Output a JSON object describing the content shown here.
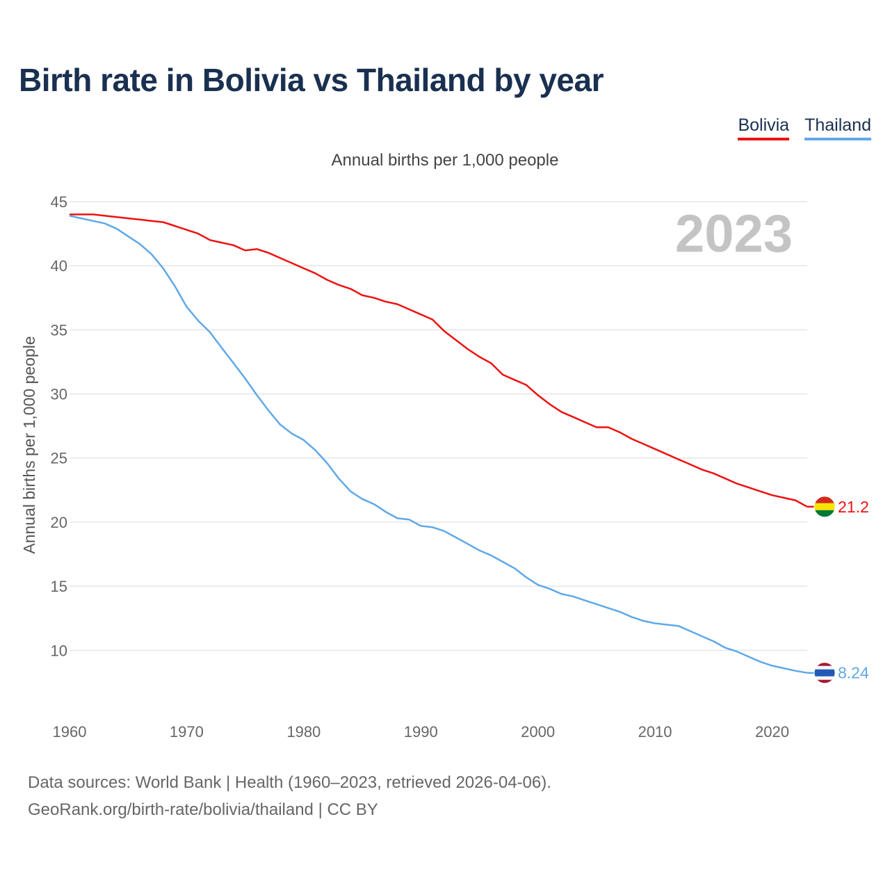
{
  "header": {
    "title": "Birth rate in Bolivia vs Thailand by year"
  },
  "legend": {
    "bolivia": "Bolivia",
    "thailand": "Thailand"
  },
  "footer": {
    "line1": "Data sources: World Bank | Health (1960–2023, retrieved 2026-04-06).",
    "line2": "GeoRank.org/birth-rate/bolivia/thailand | CC BY"
  },
  "colors": {
    "bolivia": "#ee1111",
    "thailand": "#5fa8e8",
    "grid": "#e6e6e6"
  },
  "chart_data": {
    "type": "line",
    "title": "Birth rate in Bolivia vs Thailand by year",
    "subtitle": "Annual births per 1,000 people",
    "ylabel": "Annual births per 1,000 people",
    "xlabel": "",
    "xlim": [
      1960,
      2023
    ],
    "ylim": [
      6,
      45
    ],
    "yticks": [
      10,
      15,
      20,
      25,
      30,
      35,
      40,
      45
    ],
    "xticks": [
      1960,
      1970,
      1980,
      1990,
      2000,
      2010,
      2020
    ],
    "grid": true,
    "year_watermark": "2023",
    "x": [
      1960,
      1961,
      1962,
      1963,
      1964,
      1965,
      1966,
      1967,
      1968,
      1969,
      1970,
      1971,
      1972,
      1973,
      1974,
      1975,
      1976,
      1977,
      1978,
      1979,
      1980,
      1981,
      1982,
      1983,
      1984,
      1985,
      1986,
      1987,
      1988,
      1989,
      1990,
      1991,
      1992,
      1993,
      1994,
      1995,
      1996,
      1997,
      1998,
      1999,
      2000,
      2001,
      2002,
      2003,
      2004,
      2005,
      2006,
      2007,
      2008,
      2009,
      2010,
      2011,
      2012,
      2013,
      2014,
      2015,
      2016,
      2017,
      2018,
      2019,
      2020,
      2021,
      2022,
      2023
    ],
    "series": [
      {
        "name": "Bolivia",
        "color": "#ee1111",
        "end_label": "21.2",
        "values": [
          44.0,
          44.0,
          44.0,
          43.9,
          43.8,
          43.7,
          43.6,
          43.5,
          43.4,
          43.1,
          42.8,
          42.5,
          42.0,
          41.8,
          41.6,
          41.2,
          41.3,
          41.0,
          40.6,
          40.2,
          39.8,
          39.4,
          38.9,
          38.5,
          38.2,
          37.7,
          37.5,
          37.2,
          37.0,
          36.6,
          36.2,
          35.8,
          34.9,
          34.2,
          33.5,
          32.9,
          32.4,
          31.5,
          31.1,
          30.7,
          29.9,
          29.2,
          28.6,
          28.2,
          27.8,
          27.4,
          27.4,
          27.0,
          26.5,
          26.1,
          25.7,
          25.3,
          24.9,
          24.5,
          24.1,
          23.8,
          23.4,
          23.0,
          22.7,
          22.4,
          22.1,
          21.9,
          21.7,
          21.2
        ]
      },
      {
        "name": "Thailand",
        "color": "#5fa8e8",
        "end_label": "8.24",
        "values": [
          43.9,
          43.7,
          43.5,
          43.3,
          42.9,
          42.3,
          41.7,
          40.9,
          39.8,
          38.4,
          36.8,
          35.7,
          34.8,
          33.6,
          32.4,
          31.2,
          29.9,
          28.7,
          27.6,
          26.9,
          26.4,
          25.6,
          24.6,
          23.4,
          22.4,
          21.8,
          21.4,
          20.8,
          20.3,
          20.2,
          19.7,
          19.6,
          19.3,
          18.8,
          18.3,
          17.8,
          17.4,
          16.9,
          16.4,
          15.7,
          15.1,
          14.8,
          14.4,
          14.2,
          13.9,
          13.6,
          13.3,
          13.0,
          12.6,
          12.3,
          12.1,
          12.0,
          11.9,
          11.5,
          11.1,
          10.7,
          10.2,
          9.9,
          9.5,
          9.1,
          8.8,
          8.6,
          8.4,
          8.24
        ]
      }
    ]
  }
}
